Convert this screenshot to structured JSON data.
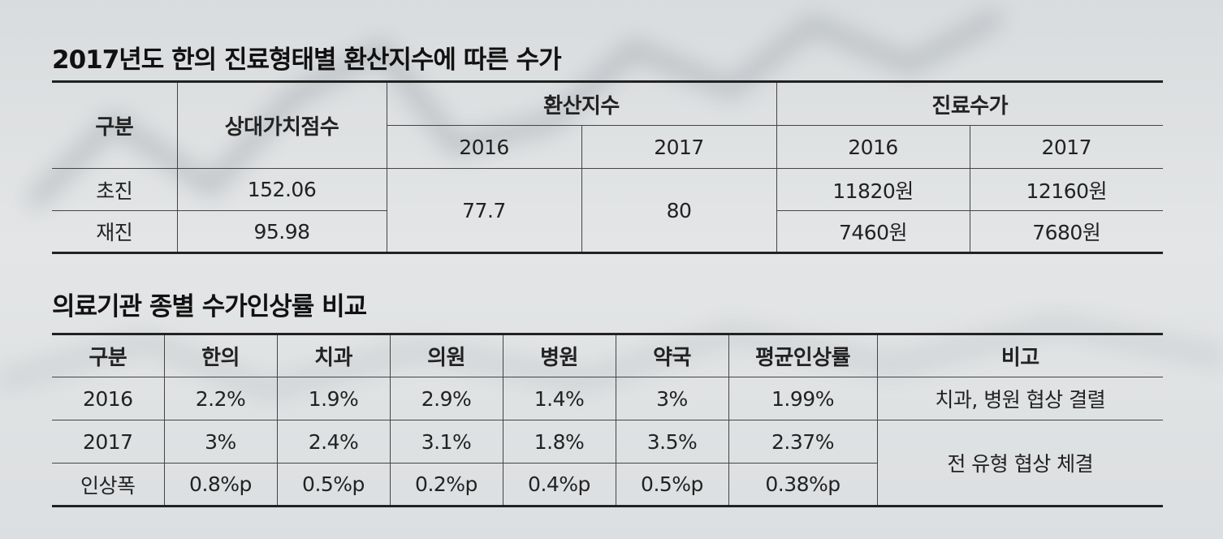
{
  "table1": {
    "title": "2017년도 한의 진료형태별 환산지수에 따른 수가",
    "headers": {
      "category": "구분",
      "rvu": "상대가치점수",
      "conversion_index": "환산지수",
      "fee": "진료수가",
      "ci_2016": "2016",
      "ci_2017": "2017",
      "fee_2016": "2016",
      "fee_2017": "2017"
    },
    "rows": [
      {
        "category": "초진",
        "rvu": "152.06",
        "fee_2016": "11820원",
        "fee_2017": "12160원"
      },
      {
        "category": "재진",
        "rvu": "95.98",
        "fee_2016": "7460원",
        "fee_2017": "7680원"
      }
    ],
    "ci_2016_value": "77.7",
    "ci_2017_value": "80"
  },
  "table2": {
    "title": "의료기관 종별 수가인상률 비교",
    "headers": [
      "구분",
      "한의",
      "치과",
      "의원",
      "병원",
      "약국",
      "평균인상률",
      "비고"
    ],
    "rows": [
      [
        "2016",
        "2.2%",
        "1.9%",
        "2.9%",
        "1.4%",
        "3%",
        "1.99%"
      ],
      [
        "2017",
        "3%",
        "2.4%",
        "3.1%",
        "1.8%",
        "3.5%",
        "2.37%"
      ],
      [
        "인상폭",
        "0.8%p",
        "0.5%p",
        "0.2%p",
        "0.4%p",
        "0.5%p",
        "0.38%p"
      ]
    ],
    "remarks": {
      "2016": "치과, 병원 협상 결렬",
      "2017_and_increase": "전 유형 협상 체결"
    }
  },
  "colors": {
    "background": "#dfe2e4",
    "rule": "#222222",
    "text": "#1a1a1a"
  }
}
